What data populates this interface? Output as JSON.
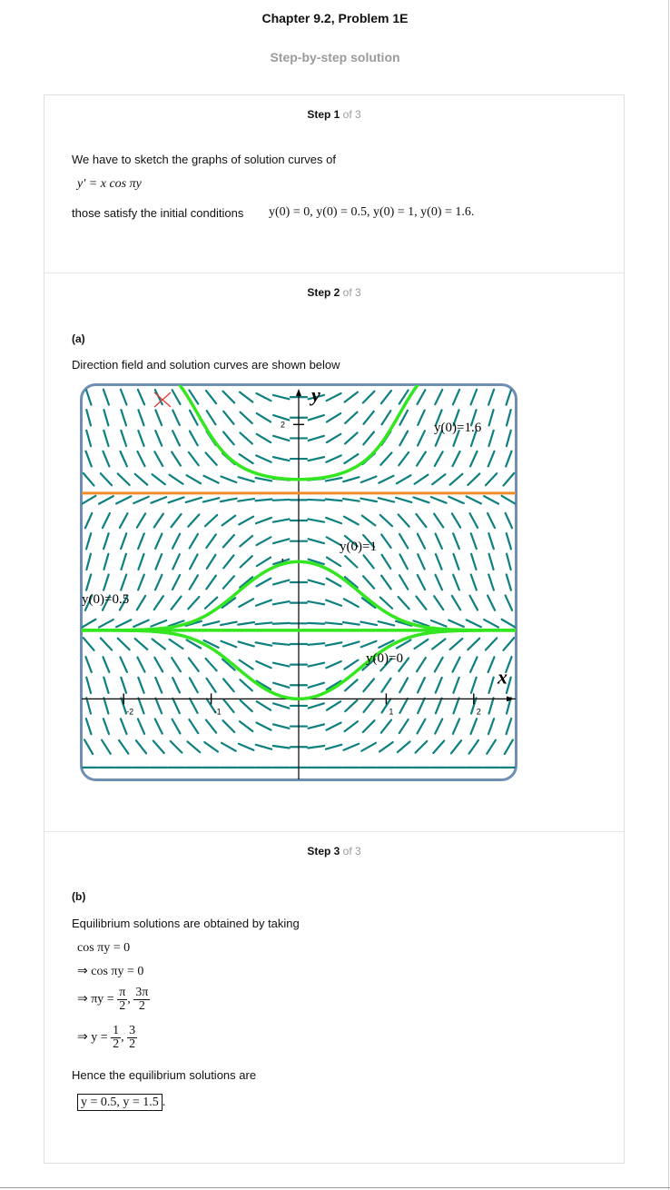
{
  "header": {
    "title": "Chapter 9.2, Problem 1E",
    "subtitle": "Step-by-step solution"
  },
  "steps": [
    {
      "label": "Step 1",
      "of": "of 3"
    },
    {
      "label": "Step 2",
      "of": "of 3"
    },
    {
      "label": "Step 3",
      "of": "of 3"
    }
  ],
  "step1": {
    "intro": "We have to sketch the graphs of solution curves of",
    "equation": "y′ = x cos πy",
    "conditions_text": "those satisfy the initial conditions",
    "conditions_math": "y(0) = 0, y(0) = 0.5, y(0) = 1, y(0) = 1.6."
  },
  "step2": {
    "part": "(a)",
    "caption": "Direction field and solution curves are shown below"
  },
  "step3": {
    "part": "(b)",
    "intro": "Equilibrium solutions are obtained by taking",
    "line1": "cos πy = 0",
    "line2": "⇒ cos πy = 0",
    "line3_lhs": "⇒ πy =",
    "line3_f1_num": "π",
    "line3_f1_den": "2",
    "line3_f2_num": "3π",
    "line3_f2_den": "2",
    "line4_lhs": "⇒ y =",
    "line4_f1_num": "1",
    "line4_f1_den": "2",
    "line4_f2_num": "3",
    "line4_f2_den": "2",
    "conclusion": "Hence the equilibrium solutions are",
    "answer": "y = 0.5, y = 1.5"
  },
  "chart_data": {
    "type": "direction-field",
    "equation": "y' = x cos(pi y)",
    "xlim": [
      -2.5,
      2.5
    ],
    "ylim": [
      -0.6,
      2.3
    ],
    "xlabel": "x",
    "ylabel": "y",
    "x_ticks": [
      {
        "value": -2,
        "label": "-2"
      },
      {
        "value": -1,
        "label": "-1"
      },
      {
        "value": 1,
        "label": "1"
      },
      {
        "value": 2,
        "label": "2"
      }
    ],
    "y_ticks": [
      {
        "value": 1,
        "label": "1"
      },
      {
        "value": 2,
        "label": "2"
      }
    ],
    "equilibria": [
      0.5,
      1.5
    ],
    "curves": [
      {
        "label": "y(0)=1.6",
        "y0": 1.6
      },
      {
        "label": "y(0)=1",
        "y0": 1
      },
      {
        "label": "y(0)=0.5",
        "y0": 0.5
      },
      {
        "label": "y(0)=0",
        "y0": 0
      }
    ],
    "colors": {
      "frame": "#6f8eb4",
      "field": "#0f8080",
      "equilibrium": "#f08c28",
      "curve": "#33e61f",
      "marker": "#e03b3b"
    }
  }
}
